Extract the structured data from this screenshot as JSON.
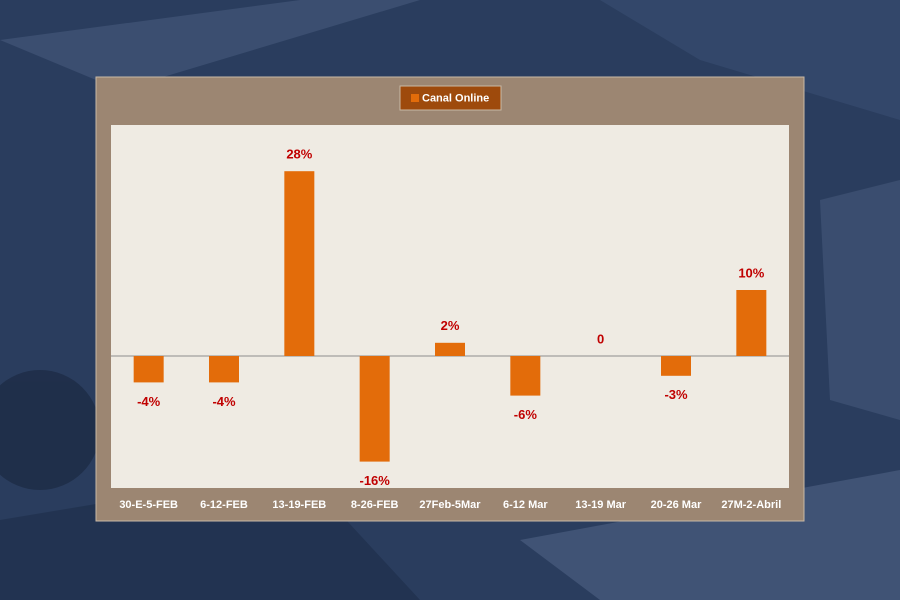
{
  "chart_data": {
    "type": "bar",
    "categories": [
      "30-E-5-FEB",
      "6-12-FEB",
      "13-19-FEB",
      "8-26-FEB",
      "27Feb-5Mar",
      "6-12 Mar",
      "13-19 Mar",
      "20-26 Mar",
      "27M-2-Abril"
    ],
    "series": [
      {
        "name": "Canal Online",
        "color": "#e36c0a",
        "values": [
          -4,
          -4,
          28,
          -16,
          2,
          -6,
          0,
          -3,
          10
        ],
        "value_labels": [
          "-4%",
          "-4%",
          "28%",
          "-16%",
          "2%",
          "-6%",
          "0",
          "-3%",
          "10%"
        ]
      }
    ],
    "ylim": [
      -20,
      35
    ],
    "legend": "top"
  }
}
